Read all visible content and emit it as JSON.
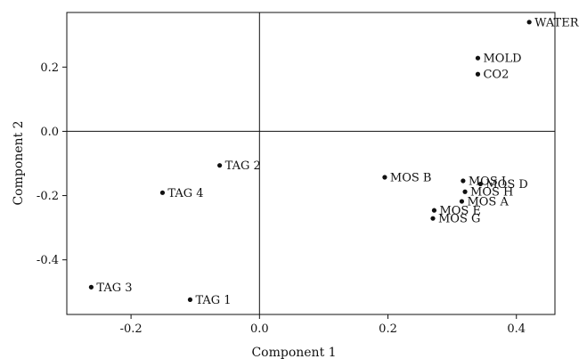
{
  "chart_data": {
    "type": "scatter",
    "title": "",
    "xlabel": "Component 1",
    "ylabel": "Component 2",
    "xlim": [
      -0.3,
      0.46
    ],
    "ylim": [
      -0.57,
      0.37
    ],
    "xticks": [
      -0.2,
      0.0,
      0.2,
      0.4
    ],
    "yticks": [
      0.2,
      0.0,
      -0.2,
      -0.4
    ],
    "xtick_labels": [
      "-0.2",
      "0.0",
      "0.2",
      "0.4"
    ],
    "ytick_labels": [
      "0.2",
      "0.0",
      "-0.2",
      "-0.4"
    ],
    "zero_lines": true,
    "grid": false,
    "points": [
      {
        "label": "WATER",
        "x": 0.42,
        "y": 0.34
      },
      {
        "label": "MOLD",
        "x": 0.34,
        "y": 0.228
      },
      {
        "label": "CO2",
        "x": 0.34,
        "y": 0.178
      },
      {
        "label": "TAG 2",
        "x": -0.062,
        "y": -0.106
      },
      {
        "label": "TAG 4",
        "x": -0.151,
        "y": -0.191
      },
      {
        "label": "TAG 3",
        "x": -0.262,
        "y": -0.485
      },
      {
        "label": "TAG 1",
        "x": -0.108,
        "y": -0.524
      },
      {
        "label": "MOS B",
        "x": 0.195,
        "y": -0.143
      },
      {
        "label": "MOS I",
        "x": 0.317,
        "y": -0.154
      },
      {
        "label": "MOS D",
        "x": 0.344,
        "y": -0.164
      },
      {
        "label": "MOS H",
        "x": 0.32,
        "y": -0.188
      },
      {
        "label": "MOS A",
        "x": 0.315,
        "y": -0.218
      },
      {
        "label": "MOS E",
        "x": 0.272,
        "y": -0.246
      },
      {
        "label": "MOS G",
        "x": 0.27,
        "y": -0.271
      }
    ]
  }
}
